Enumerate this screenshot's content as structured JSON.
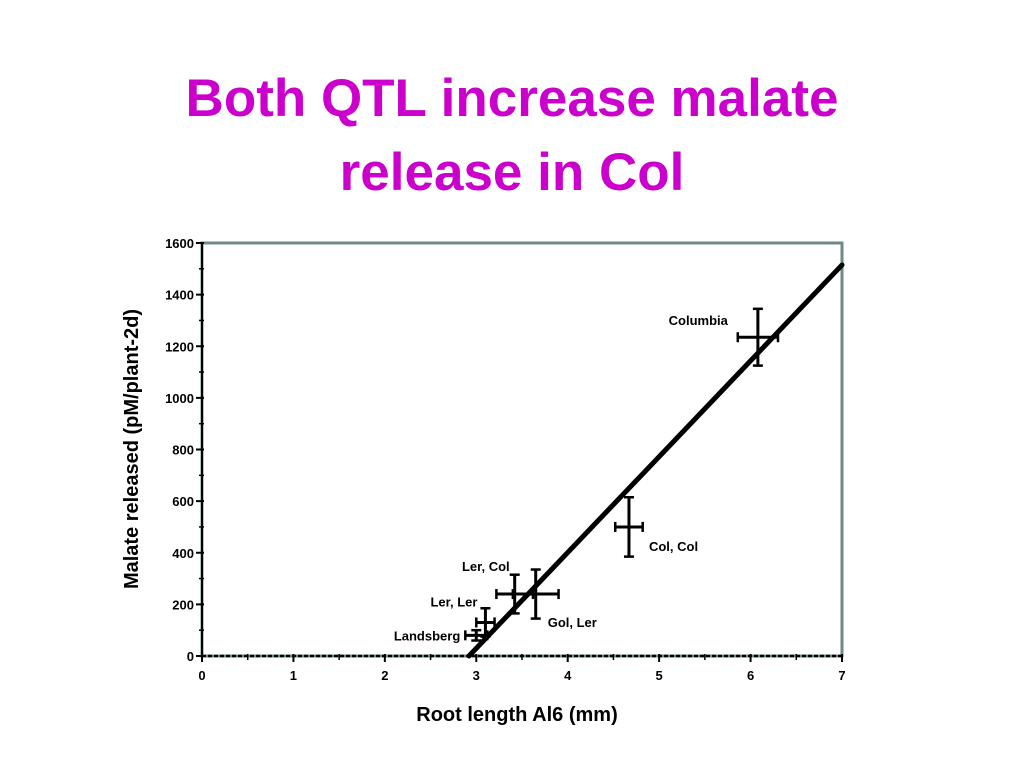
{
  "slide": {
    "title_line1": "Both QTL increase malate",
    "title_line2": "release in Col",
    "title_color": "#cc00cc"
  },
  "chart_data": {
    "type": "scatter",
    "title": "",
    "xlabel": "Root length Al6 (mm)",
    "ylabel": "Malate released (pM/plant-2d)",
    "xlim": [
      0,
      7
    ],
    "ylim": [
      0,
      1600
    ],
    "x_ticks": [
      0,
      1,
      2,
      3,
      4,
      5,
      6,
      7
    ],
    "y_ticks": [
      0,
      200,
      400,
      600,
      800,
      1000,
      1200,
      1400,
      1600
    ],
    "grid": false,
    "frame_color": "#6e8a87",
    "points": [
      {
        "label": "Columbia",
        "x": 6.08,
        "y": 1235,
        "x_err": 0.22,
        "y_err": 110
      },
      {
        "label": "Col, Col",
        "x": 4.67,
        "y": 500,
        "x_err": 0.15,
        "y_err": 115
      },
      {
        "label": "Ler, Col",
        "x": 3.42,
        "y": 240,
        "x_err": 0.2,
        "y_err": 75
      },
      {
        "label": "Gol, Ler",
        "x": 3.65,
        "y": 240,
        "x_err": 0.25,
        "y_err": 95
      },
      {
        "label": "Ler, Ler",
        "x": 3.1,
        "y": 130,
        "x_err": 0.1,
        "y_err": 55
      },
      {
        "label": "Landsberg",
        "x": 3.0,
        "y": 80,
        "x_err": 0.12,
        "y_err": 20
      }
    ],
    "fit_line": {
      "x": [
        2.92,
        7.0
      ],
      "y": [
        0,
        1515
      ]
    }
  }
}
